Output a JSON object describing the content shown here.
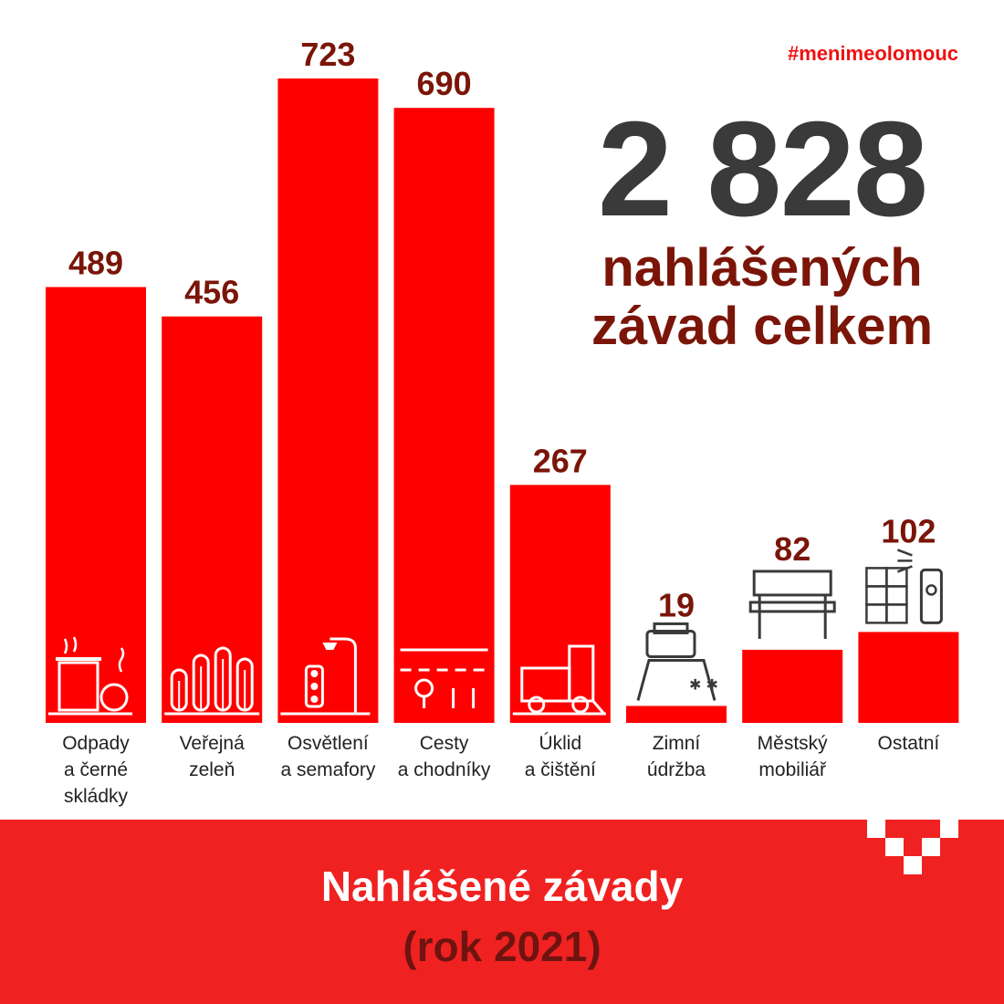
{
  "hashtag": "#menimeolomouc",
  "total": {
    "value": "2 828",
    "line1": "nahlášených",
    "line2": "závad celkem"
  },
  "footer": {
    "title": "Nahlášené závady",
    "subtitle": "(rok 2021)"
  },
  "colors": {
    "bar": "#ff0000",
    "value_text": "#7a1508",
    "total_text": "#3a3a3a",
    "footer_bg": "#f02221"
  },
  "chart_data": {
    "type": "bar",
    "categories": [
      "Odpady a černé skládky",
      "Veřejná zeleň",
      "Osvětlení a semafory",
      "Cesty a chodníky",
      "Úklid a čištění",
      "Zimní údržba",
      "Městský mobiliář",
      "Ostatní"
    ],
    "labels": [
      [
        "Odpady",
        "a černé",
        "skládky"
      ],
      [
        "Veřejná",
        "zeleň"
      ],
      [
        "Osvětlení",
        "a semafory"
      ],
      [
        "Cesty",
        "a chodníky"
      ],
      [
        "Úklid",
        "a čištění"
      ],
      [
        "Zimní",
        "údržba"
      ],
      [
        "Městský",
        "mobiliář"
      ],
      [
        "Ostatní"
      ]
    ],
    "values": [
      489,
      456,
      723,
      690,
      267,
      19,
      82,
      102
    ],
    "icons": [
      "trash-bin-icon",
      "trees-icon",
      "streetlight-traffic-light-icon",
      "road-icon",
      "street-sweeper-icon",
      "snowplow-icon",
      "bench-icon",
      "spray-wall-icon"
    ]
  }
}
